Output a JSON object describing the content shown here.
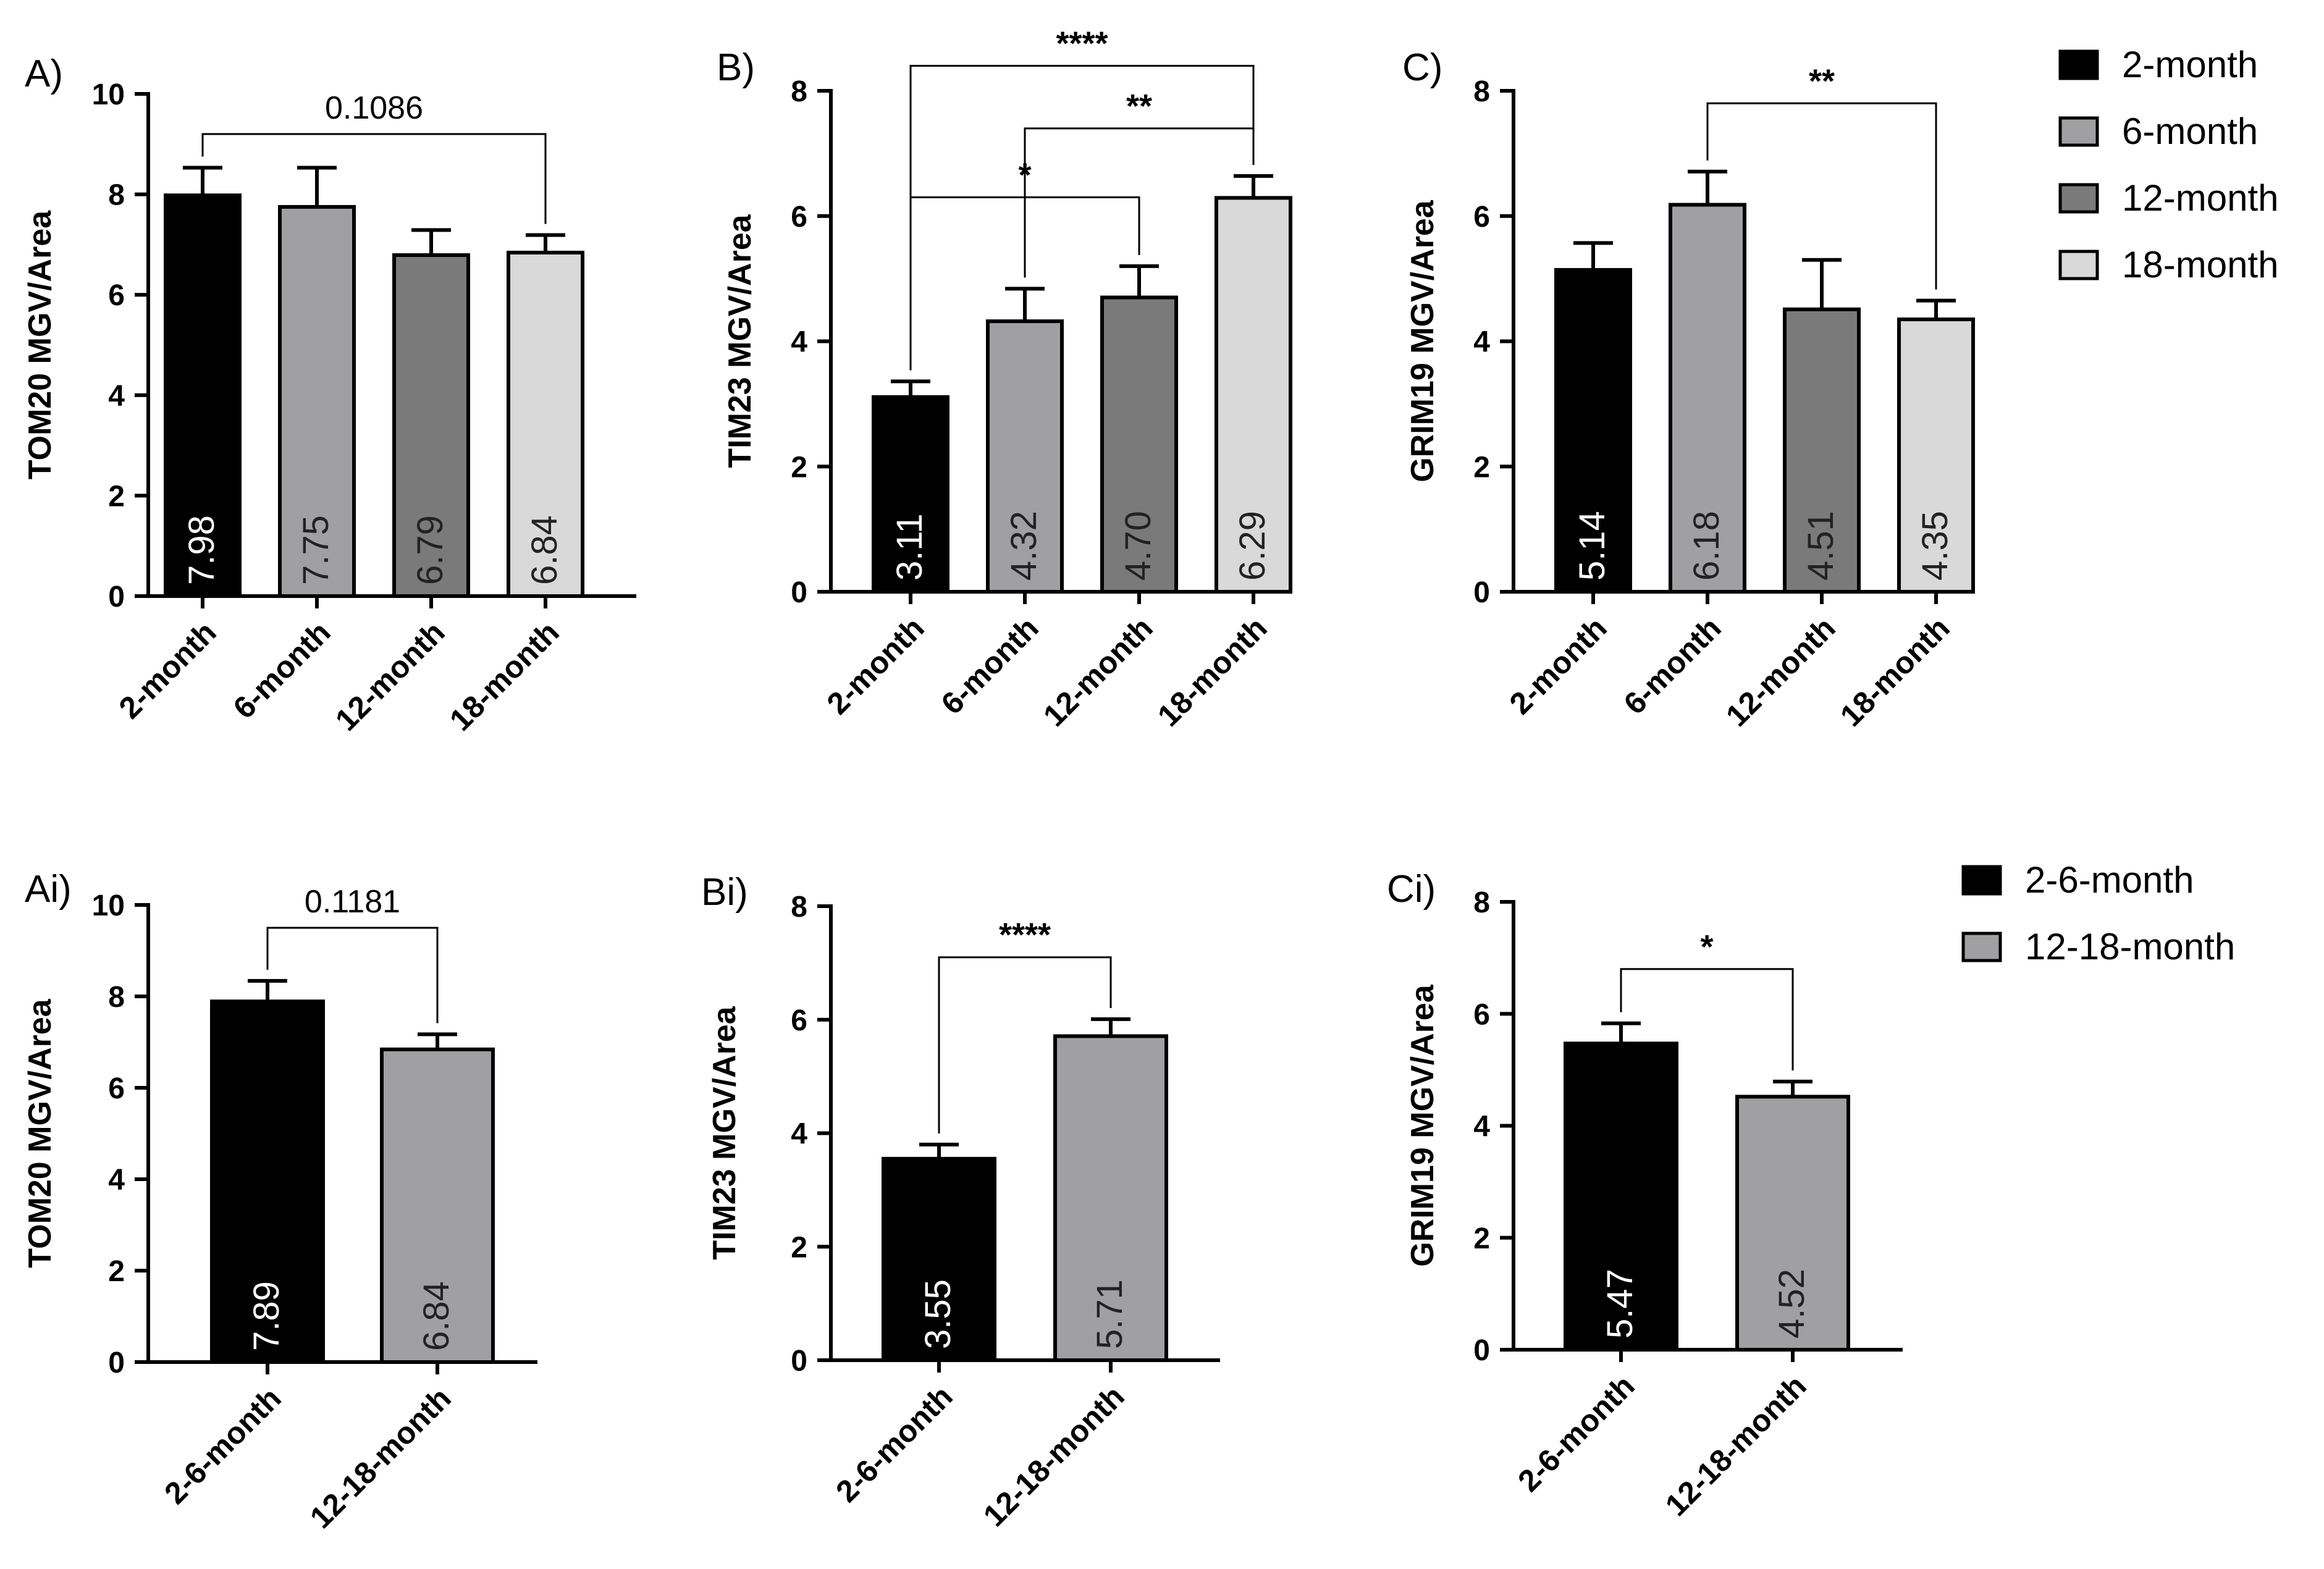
{
  "legends": [
    {
      "entries": [
        {
          "label": "2-month",
          "color": "#000000"
        },
        {
          "label": "6-month",
          "color": "#a0a0a3"
        },
        {
          "label": "12-month",
          "color": "#7a7a7a"
        },
        {
          "label": "18-month",
          "color": "#d9d9d9"
        }
      ]
    },
    {
      "entries": [
        {
          "label": "2-6-month",
          "color": "#000000"
        },
        {
          "label": "12-18-month",
          "color": "#a0a0a3"
        }
      ]
    }
  ],
  "chart_data": [
    {
      "panel": "A)",
      "type": "bar",
      "ylabel": "TOM20 MGV/Area",
      "ylim": [
        0,
        10
      ],
      "yticks": [
        0,
        2,
        4,
        6,
        8,
        10
      ],
      "categories": [
        "2-month",
        "6-month",
        "12-month",
        "18-month"
      ],
      "values": [
        7.98,
        7.75,
        6.79,
        6.84
      ],
      "value_labels": [
        "7.98",
        "7.75",
        "6.79",
        "6.84"
      ],
      "errors": [
        0.55,
        0.78,
        0.5,
        0.35
      ],
      "colors": [
        "#000000",
        "#a0a0a3",
        "#7a7a7a",
        "#d9d9d9"
      ],
      "comparisons": [
        {
          "from": 0,
          "to": 3,
          "label": "0.1086",
          "y": 9.2
        }
      ]
    },
    {
      "panel": "B)",
      "type": "bar",
      "ylabel": "TIM23 MGV/Area",
      "ylim": [
        0,
        8
      ],
      "yticks": [
        0,
        2,
        4,
        6,
        8
      ],
      "categories": [
        "2-month",
        "6-month",
        "12-month",
        "18-month"
      ],
      "values": [
        3.11,
        4.32,
        4.7,
        6.29
      ],
      "value_labels": [
        "3.11",
        "4.32",
        "4.70",
        "6.29"
      ],
      "errors": [
        0.25,
        0.52,
        0.5,
        0.35
      ],
      "colors": [
        "#000000",
        "#a0a0a3",
        "#7a7a7a",
        "#d9d9d9"
      ],
      "comparisons": [
        {
          "from": 0,
          "to": 3,
          "label": "****",
          "y": 8.4
        },
        {
          "from": 1,
          "to": 3,
          "label": "**",
          "y": 7.4
        },
        {
          "from": 0,
          "to": 2,
          "label": "*",
          "y": 6.3
        }
      ]
    },
    {
      "panel": "C)",
      "type": "bar",
      "ylabel": "GRIM19 MGV/Area",
      "ylim": [
        0,
        8
      ],
      "yticks": [
        0,
        2,
        4,
        6,
        8
      ],
      "categories": [
        "2-month",
        "6-month",
        "12-month",
        "18-month"
      ],
      "values": [
        5.14,
        6.18,
        4.51,
        4.35
      ],
      "value_labels": [
        "5.14",
        "6.18",
        "4.51",
        "4.35"
      ],
      "errors": [
        0.43,
        0.53,
        0.79,
        0.3
      ],
      "colors": [
        "#000000",
        "#a0a0a3",
        "#7a7a7a",
        "#d9d9d9"
      ],
      "comparisons": [
        {
          "from": 1,
          "to": 3,
          "label": "**",
          "y": 7.8
        }
      ]
    },
    {
      "panel": "Ai)",
      "type": "bar",
      "ylabel": "TOM20 MGV/Area",
      "ylim": [
        0,
        10
      ],
      "yticks": [
        0,
        2,
        4,
        6,
        8,
        10
      ],
      "categories": [
        "2-6-month",
        "12-18-month"
      ],
      "values": [
        7.89,
        6.84
      ],
      "value_labels": [
        "7.89",
        "6.84"
      ],
      "errors": [
        0.45,
        0.33
      ],
      "colors": [
        "#000000",
        "#a0a0a3"
      ],
      "comparisons": [
        {
          "from": 0,
          "to": 1,
          "label": "0.1181",
          "y": 9.5
        }
      ]
    },
    {
      "panel": "Bi)",
      "type": "bar",
      "ylabel": "TIM23 MGV/Area",
      "ylim": [
        0,
        8
      ],
      "yticks": [
        0,
        2,
        4,
        6,
        8
      ],
      "categories": [
        "2-6-month",
        "12-18-month"
      ],
      "values": [
        3.55,
        5.71
      ],
      "value_labels": [
        "3.55",
        "5.71"
      ],
      "errors": [
        0.25,
        0.3
      ],
      "colors": [
        "#000000",
        "#a0a0a3"
      ],
      "comparisons": [
        {
          "from": 0,
          "to": 1,
          "label": "****",
          "y": 7.1
        }
      ]
    },
    {
      "panel": "Ci)",
      "type": "bar",
      "ylabel": "GRIM19 MGV/Area",
      "ylim": [
        0,
        8
      ],
      "yticks": [
        0,
        2,
        4,
        6,
        8
      ],
      "categories": [
        "2-6-month",
        "12-18-month"
      ],
      "values": [
        5.47,
        4.52
      ],
      "value_labels": [
        "5.47",
        "4.52"
      ],
      "errors": [
        0.36,
        0.27
      ],
      "colors": [
        "#000000",
        "#a0a0a3"
      ],
      "comparisons": [
        {
          "from": 0,
          "to": 1,
          "label": "*",
          "y": 6.8
        }
      ]
    }
  ]
}
